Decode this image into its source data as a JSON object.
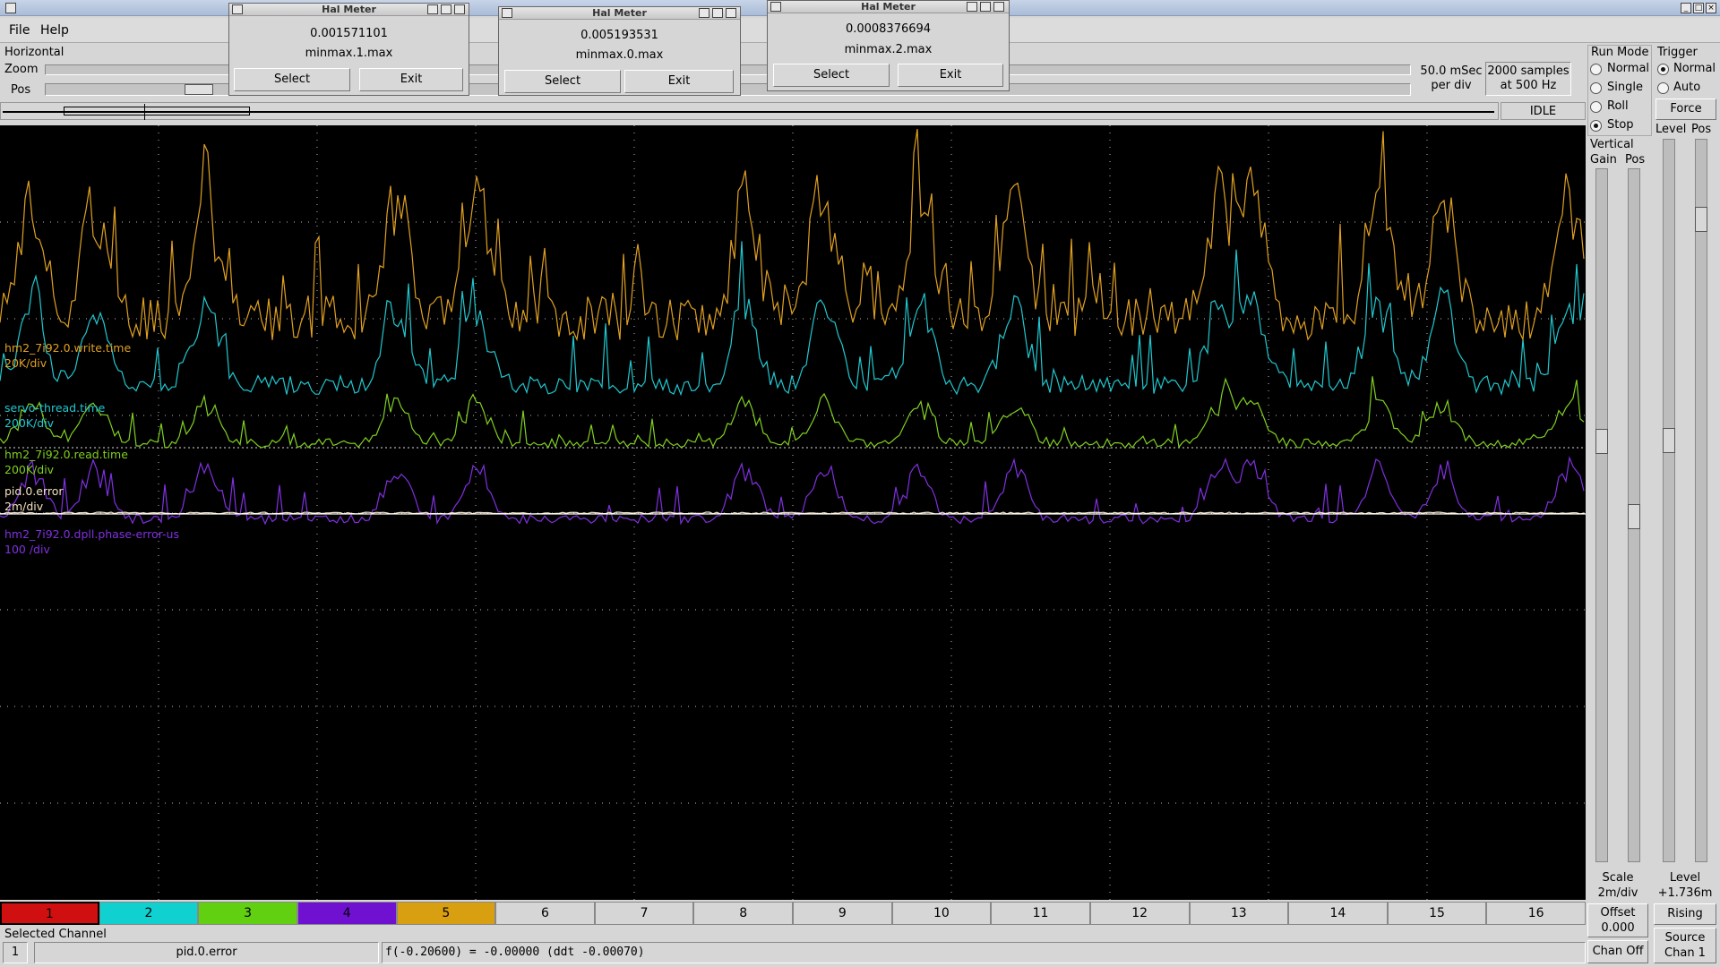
{
  "menu": {
    "file": "File",
    "help": "Help"
  },
  "horizontal": {
    "title": "Horizontal",
    "zoom_label": "Zoom",
    "pos_label": "Pos",
    "rate_line1": "50.0 mSec",
    "rate_line2": "per div",
    "samples_line1": "2000 samples",
    "samples_line2": "at 500 Hz",
    "status": "IDLE"
  },
  "run_mode": {
    "title": "Run Mode",
    "options": [
      "Normal",
      "Single",
      "Roll",
      "Stop"
    ],
    "selected": "Stop"
  },
  "trigger": {
    "title": "Trigger",
    "options": [
      "Normal",
      "Auto"
    ],
    "selected": "Normal",
    "force": "Force",
    "level_label": "Level",
    "pos_label": "Pos",
    "level_title": "Level",
    "level_value": "+1.736m",
    "edge": "Rising",
    "source_line1": "Source",
    "source_line2": "Chan 1"
  },
  "vertical": {
    "title": "Vertical",
    "gain_label": "Gain",
    "pos_label": "Pos",
    "scale_label": "Scale",
    "scale_value": "2m/div",
    "offset_label": "Offset",
    "offset_value": "0.000",
    "chan_off": "Chan Off"
  },
  "traces": [
    {
      "name": "hm2_7i92.0.write.time",
      "scale": "20K/div",
      "color": "#e0a020"
    },
    {
      "name": "servo-thread.time",
      "scale": "200K/div",
      "color": "#20c8d0"
    },
    {
      "name": "hm2_7i92.0.read.time",
      "scale": "200K/div",
      "color": "#80d020"
    },
    {
      "name": "pid.0.error",
      "scale": "2m/div",
      "color": "#f0e0c0"
    },
    {
      "name": "hm2_7i92.0.dpll.phase-error-us",
      "scale": "100 /div",
      "color": "#8030e0"
    }
  ],
  "channels": [
    "1",
    "2",
    "3",
    "4",
    "5",
    "6",
    "7",
    "8",
    "9",
    "10",
    "11",
    "12",
    "13",
    "14",
    "15",
    "16"
  ],
  "channel_colors": [
    "#d01010",
    "#10d0d0",
    "#60d010",
    "#7010d0",
    "#d8a010"
  ],
  "selected_channel": {
    "title": "Selected Channel",
    "number": "1",
    "name": "pid.0.error",
    "readout": "f(-0.20600) = -0.00000 (ddt -0.00070)"
  },
  "hal_meters": [
    {
      "title": "Hal Meter",
      "value": "0.001571101",
      "pin": "minmax.1.max",
      "select": "Select",
      "exit": "Exit"
    },
    {
      "title": "Hal Meter",
      "value": "0.005193531",
      "pin": "minmax.0.max",
      "select": "Select",
      "exit": "Exit"
    },
    {
      "title": "Hal Meter",
      "value": "0.0008376694",
      "pin": "minmax.2.max",
      "select": "Select",
      "exit": "Exit"
    }
  ]
}
